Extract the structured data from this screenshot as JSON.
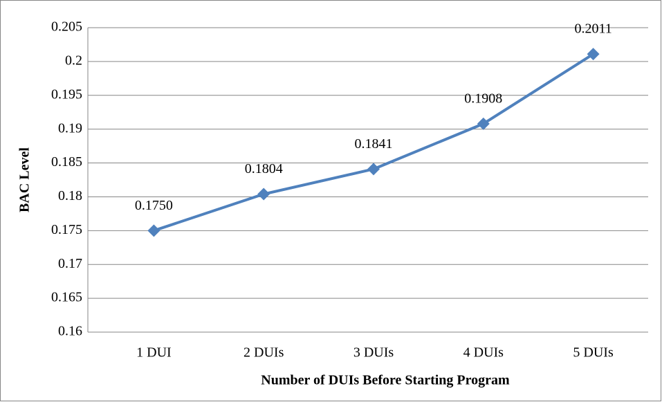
{
  "chart_data": {
    "type": "line",
    "x_label": "Number of DUIs Before Starting Program",
    "y_label": "BAC Level",
    "categories": [
      "1 DUI",
      "2 DUIs",
      "3 DUIs",
      "4 DUIs",
      "5 DUIs"
    ],
    "series": [
      {
        "color": "#4f81bd",
        "values": [
          0.175,
          0.1804,
          0.1841,
          0.1908,
          0.2011
        ],
        "value_labels": [
          "0.1750",
          "0.1804",
          "0.1841",
          "0.1908",
          "0.2011"
        ]
      }
    ],
    "ylim": [
      0.16,
      0.205
    ],
    "yticks": [
      0.16,
      0.165,
      0.17,
      0.175,
      0.18,
      0.185,
      0.19,
      0.195,
      0.2,
      0.205
    ],
    "grid": true
  }
}
